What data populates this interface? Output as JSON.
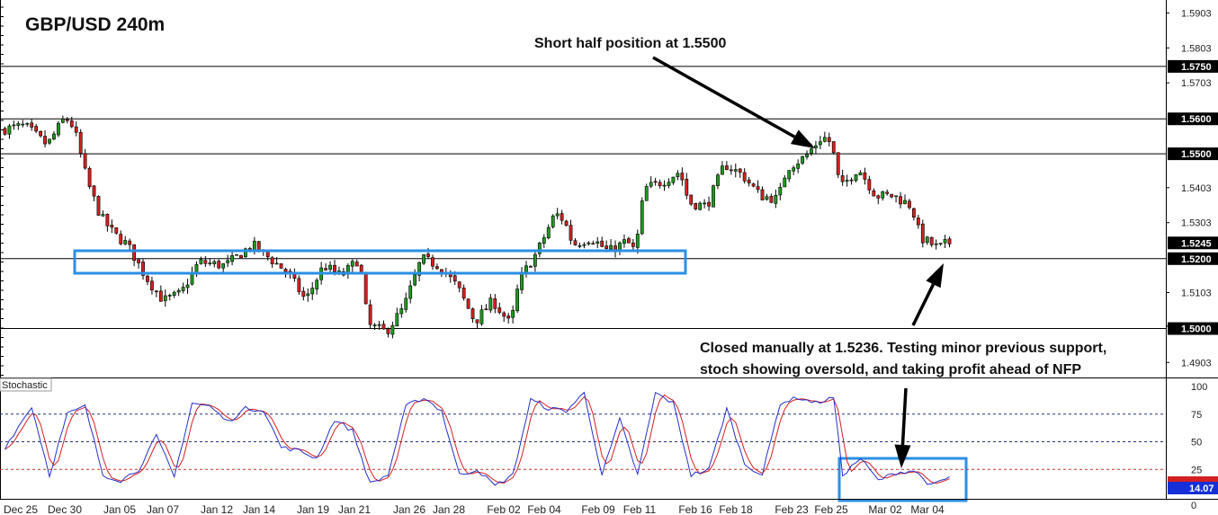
{
  "title": "GBP/USD 240m",
  "annotations": [
    {
      "text": "Short half position at 1.5500"
    },
    {
      "text": "Closed manually at 1.5236. Testing minor previous support,"
    },
    {
      "text": "stoch showing oversold, and taking profit ahead of NFP"
    }
  ],
  "oscillator_label": "Stochastic",
  "colors": {
    "bull_candle": "#1f9b1f",
    "bear_candle": "#d42020",
    "highlight_box": "#2a8fe6",
    "stoch_k": "#2430c8",
    "stoch_d": "#d42020",
    "tag_fill": "#000000",
    "last_value_fill": "#1530d8"
  },
  "chart_data": [
    {
      "type": "candlestick",
      "symbol": "GBP/USD",
      "timeframe": "240m",
      "ylim": [
        1.486,
        1.594
      ],
      "y_ticks": [
        "1.4903",
        "1.5007",
        "1.5103",
        "1.5303",
        "1.5403",
        "1.5703",
        "1.5803",
        "1.5903"
      ],
      "horizontal_levels": [
        "1.5750",
        "1.5600",
        "1.5500",
        "1.5200",
        "1.5000"
      ],
      "current_price": "1.5245",
      "x_ticks": [
        "Dec 25",
        "Dec 30",
        "Jan 05",
        "Jan 07",
        "Jan 12",
        "Jan 14",
        "Jan 19",
        "Jan 21",
        "Jan 26",
        "Jan 28",
        "Feb 02",
        "Feb 04",
        "Feb 09",
        "Feb 11",
        "Feb 16",
        "Feb 18",
        "Feb 23",
        "Feb 25",
        "Mar 02",
        "Mar 04"
      ],
      "path_waypoints": [
        [
          0,
          1.557
        ],
        [
          5,
          1.558
        ],
        [
          10,
          1.5525
        ],
        [
          14,
          1.5605
        ],
        [
          16,
          1.5575
        ],
        [
          19,
          1.542
        ],
        [
          22,
          1.532
        ],
        [
          25,
          1.527
        ],
        [
          28,
          1.524
        ],
        [
          32,
          1.515
        ],
        [
          36,
          1.508
        ],
        [
          40,
          1.51
        ],
        [
          44,
          1.519
        ],
        [
          50,
          1.518
        ],
        [
          56,
          1.524
        ],
        [
          60,
          1.52
        ],
        [
          64,
          1.516
        ],
        [
          68,
          1.508
        ],
        [
          72,
          1.518
        ],
        [
          76,
          1.515
        ],
        [
          80,
          1.52
        ],
        [
          82,
          1.501
        ],
        [
          86,
          1.499
        ],
        [
          90,
          1.506
        ],
        [
          94,
          1.52
        ],
        [
          98,
          1.518
        ],
        [
          102,
          1.512
        ],
        [
          106,
          1.502
        ],
        [
          110,
          1.508
        ],
        [
          114,
          1.501
        ],
        [
          116,
          1.514
        ],
        [
          120,
          1.522
        ],
        [
          124,
          1.533
        ],
        [
          126,
          1.531
        ],
        [
          128,
          1.524
        ],
        [
          132,
          1.526
        ],
        [
          136,
          1.522
        ],
        [
          140,
          1.525
        ],
        [
          142,
          1.522
        ],
        [
          144,
          1.54
        ],
        [
          148,
          1.542
        ],
        [
          152,
          1.545
        ],
        [
          154,
          1.536
        ],
        [
          158,
          1.535
        ],
        [
          162,
          1.547
        ],
        [
          166,
          1.544
        ],
        [
          170,
          1.538
        ],
        [
          174,
          1.537
        ],
        [
          176,
          1.546
        ],
        [
          180,
          1.549
        ],
        [
          184,
          1.555
        ],
        [
          186,
          1.553
        ],
        [
          188,
          1.54
        ],
        [
          192,
          1.546
        ],
        [
          196,
          1.538
        ],
        [
          200,
          1.538
        ],
        [
          204,
          1.535
        ],
        [
          206,
          1.526
        ],
        [
          210,
          1.523
        ],
        [
          212,
          1.5245
        ]
      ]
    },
    {
      "type": "line",
      "name": "Stochastic",
      "ylim": [
        0,
        100
      ],
      "y_ticks": [
        "100",
        "75",
        "50",
        "25",
        "0"
      ],
      "levels": [
        75,
        50,
        25
      ],
      "last_value": "14.07",
      "k_waypoints": [
        [
          0,
          45
        ],
        [
          6,
          82
        ],
        [
          10,
          20
        ],
        [
          14,
          75
        ],
        [
          18,
          82
        ],
        [
          22,
          20
        ],
        [
          26,
          15
        ],
        [
          30,
          25
        ],
        [
          34,
          55
        ],
        [
          38,
          18
        ],
        [
          42,
          85
        ],
        [
          46,
          82
        ],
        [
          50,
          68
        ],
        [
          54,
          80
        ],
        [
          58,
          79
        ],
        [
          62,
          45
        ],
        [
          66,
          42
        ],
        [
          70,
          35
        ],
        [
          74,
          70
        ],
        [
          78,
          60
        ],
        [
          82,
          12
        ],
        [
          86,
          20
        ],
        [
          90,
          82
        ],
        [
          94,
          90
        ],
        [
          98,
          78
        ],
        [
          102,
          20
        ],
        [
          106,
          25
        ],
        [
          110,
          10
        ],
        [
          114,
          20
        ],
        [
          118,
          88
        ],
        [
          122,
          80
        ],
        [
          126,
          78
        ],
        [
          130,
          94
        ],
        [
          134,
          20
        ],
        [
          138,
          70
        ],
        [
          142,
          20
        ],
        [
          146,
          94
        ],
        [
          150,
          85
        ],
        [
          154,
          20
        ],
        [
          158,
          25
        ],
        [
          162,
          80
        ],
        [
          166,
          30
        ],
        [
          170,
          20
        ],
        [
          174,
          85
        ],
        [
          178,
          90
        ],
        [
          182,
          85
        ],
        [
          186,
          90
        ],
        [
          188,
          20
        ],
        [
          192,
          35
        ],
        [
          196,
          15
        ],
        [
          200,
          22
        ],
        [
          204,
          24
        ],
        [
          208,
          10
        ],
        [
          212,
          18
        ]
      ]
    }
  ]
}
